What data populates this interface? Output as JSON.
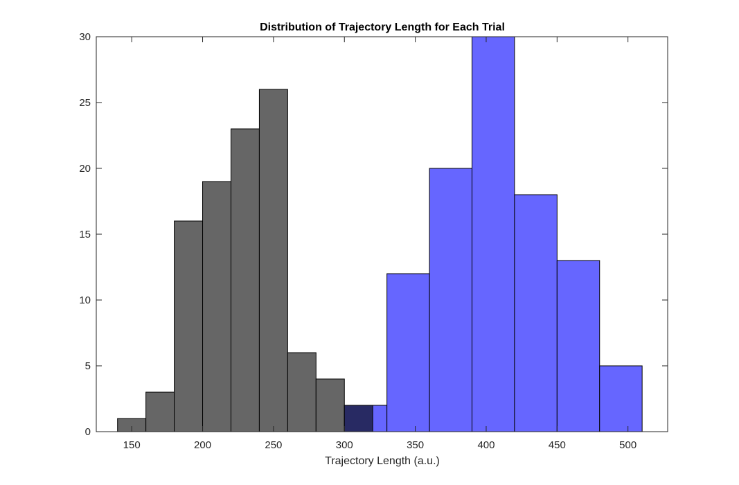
{
  "chart_data": {
    "type": "bar",
    "subtype": "overlapping-histogram",
    "title": "Distribution of Trajectory Length for Each Trial",
    "xlabel": "Trajectory Length (a.u.)",
    "ylabel": "",
    "xlim": [
      125,
      528
    ],
    "ylim": [
      0,
      30
    ],
    "xticks": [
      150,
      200,
      250,
      300,
      350,
      400,
      450,
      500
    ],
    "yticks": [
      0,
      5,
      10,
      15,
      20,
      25,
      30
    ],
    "grid": false,
    "legend": "none",
    "overlap_color": "#282a63",
    "series": [
      {
        "color": "#666666",
        "bin_edges": [
          140,
          160,
          180,
          200,
          220,
          240,
          260,
          280,
          300,
          320
        ],
        "values": [
          1,
          3,
          16,
          19,
          23,
          26,
          6,
          4,
          2
        ]
      },
      {
        "color": "#6666ff",
        "bin_edges": [
          300,
          330,
          360,
          390,
          420,
          450,
          480,
          510
        ],
        "values": [
          2,
          12,
          20,
          30,
          18,
          13,
          5
        ]
      }
    ]
  }
}
